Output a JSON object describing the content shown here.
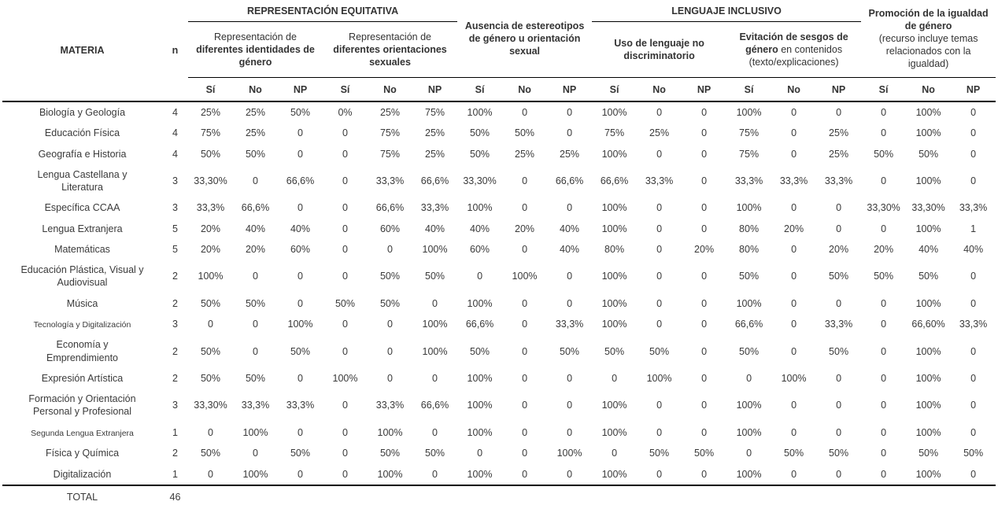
{
  "table": {
    "header": {
      "materia": "MATERIA",
      "n": "n",
      "group_equitativa": "REPRESENTACIÓN EQUITATIVA",
      "group_ausencia": "Ausencia de estereotipos de género u orientación sexual",
      "group_inclusivo": "LENGUAJE INCLUSIVO",
      "group_promocion_bold": "Promoción de la igualdad de género",
      "group_promocion_plain": "(recurso incluye temas relacionados con la igualdad)",
      "sub_identidades_plain": "Representación de",
      "sub_identidades_bold": "diferentes identidades de género",
      "sub_orientaciones_plain": "Representación de",
      "sub_orientaciones_bold": "diferentes orientaciones sexuales",
      "sub_uso_bold": "Uso de lenguaje no discriminatorio",
      "sub_evitacion_bold": "Evitación de sesgos de género",
      "sub_evitacion_plain": "en contenidos (texto/explicaciones)",
      "yesno": [
        "Sí",
        "No",
        "NP"
      ]
    },
    "rows": [
      {
        "label": "Biología y Geología",
        "n": "4",
        "small": false,
        "values": [
          "25%",
          "25%",
          "50%",
          "0%",
          "25%",
          "75%",
          "100%",
          "0",
          "0",
          "100%",
          "0",
          "0",
          "100%",
          "0",
          "0",
          "0",
          "100%",
          "0"
        ]
      },
      {
        "label": "Educación Física",
        "n": "4",
        "small": false,
        "values": [
          "75%",
          "25%",
          "0",
          "0",
          "75%",
          "25%",
          "50%",
          "50%",
          "0",
          "75%",
          "25%",
          "0",
          "75%",
          "0",
          "25%",
          "0",
          "100%",
          "0"
        ]
      },
      {
        "label": "Geografía e Historia",
        "n": "4",
        "small": false,
        "values": [
          "50%",
          "50%",
          "0",
          "0",
          "75%",
          "25%",
          "50%",
          "25%",
          "25%",
          "100%",
          "0",
          "0",
          "75%",
          "0",
          "25%",
          "50%",
          "50%",
          "0"
        ]
      },
      {
        "label": "Lengua Castellana y Literatura",
        "n": "3",
        "small": false,
        "values": [
          "33,30%",
          "0",
          "66,6%",
          "0",
          "33,3%",
          "66,6%",
          "33,30%",
          "0",
          "66,6%",
          "66,6%",
          "33,3%",
          "0",
          "33,3%",
          "33,3%",
          "33,3%",
          "0",
          "100%",
          "0"
        ]
      },
      {
        "label": "Específica CCAA",
        "n": "3",
        "small": false,
        "values": [
          "33,3%",
          "66,6%",
          "0",
          "0",
          "66,6%",
          "33,3%",
          "100%",
          "0",
          "0",
          "100%",
          "0",
          "0",
          "100%",
          "0",
          "0",
          "33,30%",
          "33,30%",
          "33,3%"
        ]
      },
      {
        "label": "Lengua Extranjera",
        "n": "5",
        "small": false,
        "values": [
          "20%",
          "40%",
          "40%",
          "0",
          "60%",
          "40%",
          "40%",
          "20%",
          "40%",
          "100%",
          "0",
          "0",
          "80%",
          "20%",
          "0",
          "0",
          "100%",
          "1"
        ]
      },
      {
        "label": "Matemáticas",
        "n": "5",
        "small": false,
        "values": [
          "20%",
          "20%",
          "60%",
          "0",
          "0",
          "100%",
          "60%",
          "0",
          "40%",
          "80%",
          "0",
          "20%",
          "80%",
          "0",
          "20%",
          "20%",
          "40%",
          "40%"
        ]
      },
      {
        "label": "Educación Plástica, Visual y Audiovisual",
        "n": "2",
        "small": false,
        "values": [
          "100%",
          "0",
          "0",
          "0",
          "50%",
          "50%",
          "0",
          "100%",
          "0",
          "100%",
          "0",
          "0",
          "50%",
          "0",
          "50%",
          "50%",
          "50%",
          "0"
        ]
      },
      {
        "label": "Música",
        "n": "2",
        "small": false,
        "values": [
          "50%",
          "50%",
          "0",
          "50%",
          "50%",
          "0",
          "100%",
          "0",
          "0",
          "100%",
          "0",
          "0",
          "100%",
          "0",
          "0",
          "0",
          "100%",
          "0"
        ]
      },
      {
        "label": "Tecnología y Digitalización",
        "n": "3",
        "small": true,
        "values": [
          "0",
          "0",
          "100%",
          "0",
          "0",
          "100%",
          "66,6%",
          "0",
          "33,3%",
          "100%",
          "0",
          "0",
          "66,6%",
          "0",
          "33,3%",
          "0",
          "66,60%",
          "33,3%"
        ]
      },
      {
        "label": "Economía y Emprendimiento",
        "n": "2",
        "small": false,
        "values": [
          "50%",
          "0",
          "50%",
          "0",
          "0",
          "100%",
          "50%",
          "0",
          "50%",
          "50%",
          "50%",
          "0",
          "50%",
          "0",
          "50%",
          "0",
          "100%",
          "0"
        ]
      },
      {
        "label": "Expresión Artística",
        "n": "2",
        "small": false,
        "values": [
          "50%",
          "50%",
          "0",
          "100%",
          "0",
          "0",
          "100%",
          "0",
          "0",
          "0",
          "100%",
          "0",
          "0",
          "100%",
          "0",
          "0",
          "100%",
          "0"
        ]
      },
      {
        "label": "Formación y Orientación Personal y Profesional",
        "n": "3",
        "small": false,
        "values": [
          "33,30%",
          "33,3%",
          "33,3%",
          "0",
          "33,3%",
          "66,6%",
          "100%",
          "0",
          "0",
          "100%",
          "0",
          "0",
          "100%",
          "0",
          "0",
          "0",
          "100%",
          "0"
        ]
      },
      {
        "label": "Segunda Lengua Extranjera",
        "n": "1",
        "small": true,
        "values": [
          "0",
          "100%",
          "0",
          "0",
          "100%",
          "0",
          "100%",
          "0",
          "0",
          "100%",
          "0",
          "0",
          "100%",
          "0",
          "0",
          "0",
          "100%",
          "0"
        ]
      },
      {
        "label": "Física y Química",
        "n": "2",
        "small": false,
        "values": [
          "50%",
          "0",
          "50%",
          "0",
          "50%",
          "50%",
          "0",
          "0",
          "100%",
          "0",
          "50%",
          "50%",
          "0",
          "50%",
          "50%",
          "0",
          "50%",
          "50%"
        ]
      },
      {
        "label": "Digitalización",
        "n": "1",
        "small": false,
        "values": [
          "0",
          "100%",
          "0",
          "0",
          "100%",
          "0",
          "100%",
          "0",
          "0",
          "100%",
          "0",
          "0",
          "100%",
          "0",
          "0",
          "0",
          "100%",
          "0"
        ]
      }
    ],
    "total": {
      "label": "TOTAL",
      "n": "46"
    }
  }
}
